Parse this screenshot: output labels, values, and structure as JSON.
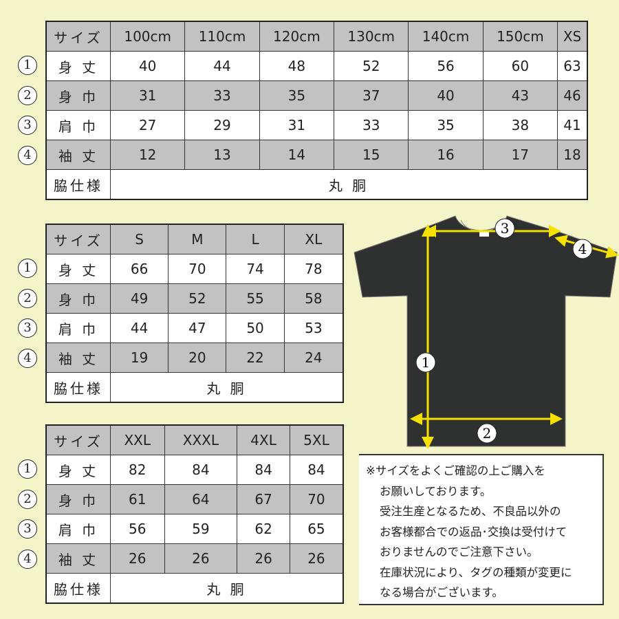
{
  "row_labels": [
    "身 丈",
    "身 巾",
    "肩 巾",
    "袖 丈"
  ],
  "size_label": "サイズ",
  "side_label": "脇仕様",
  "side_value": "丸 胴",
  "markers": [
    "1",
    "2",
    "3",
    "4"
  ],
  "tables": [
    {
      "sizes": [
        "100cm",
        "110cm",
        "120cm",
        "130cm",
        "140cm",
        "150cm",
        "XS"
      ],
      "rows": [
        [
          "40",
          "44",
          "48",
          "52",
          "56",
          "60",
          "63"
        ],
        [
          "31",
          "33",
          "35",
          "37",
          "40",
          "43",
          "46"
        ],
        [
          "27",
          "29",
          "31",
          "33",
          "35",
          "38",
          "41"
        ],
        [
          "12",
          "13",
          "14",
          "15",
          "16",
          "17",
          "18"
        ]
      ]
    },
    {
      "sizes": [
        "S",
        "M",
        "L",
        "XL"
      ],
      "rows": [
        [
          "66",
          "70",
          "74",
          "78"
        ],
        [
          "49",
          "52",
          "55",
          "58"
        ],
        [
          "44",
          "47",
          "50",
          "53"
        ],
        [
          "19",
          "20",
          "22",
          "24"
        ]
      ]
    },
    {
      "sizes": [
        "XXL",
        "XXXL",
        "4XL",
        "5XL"
      ],
      "rows": [
        [
          "82",
          "84",
          "84",
          "84"
        ],
        [
          "61",
          "64",
          "67",
          "70"
        ],
        [
          "56",
          "59",
          "62",
          "65"
        ],
        [
          "26",
          "26",
          "26",
          "26"
        ]
      ]
    }
  ],
  "note": [
    "※サイズをよくご確認の上ご購入を",
    "お願いしております。",
    "受注生産となるため、不良品以外の",
    "お客様都合での返品･交換は受付けて",
    "おりませんのでご注意下さい。",
    "在庫状況により、タグの種類が変更に",
    "なる場合がございます。"
  ],
  "colors": {
    "background": "#f3f5c9",
    "gray_row": "#c2c2c2",
    "shirt": "#2f3130",
    "arrow": "#f5e000"
  }
}
